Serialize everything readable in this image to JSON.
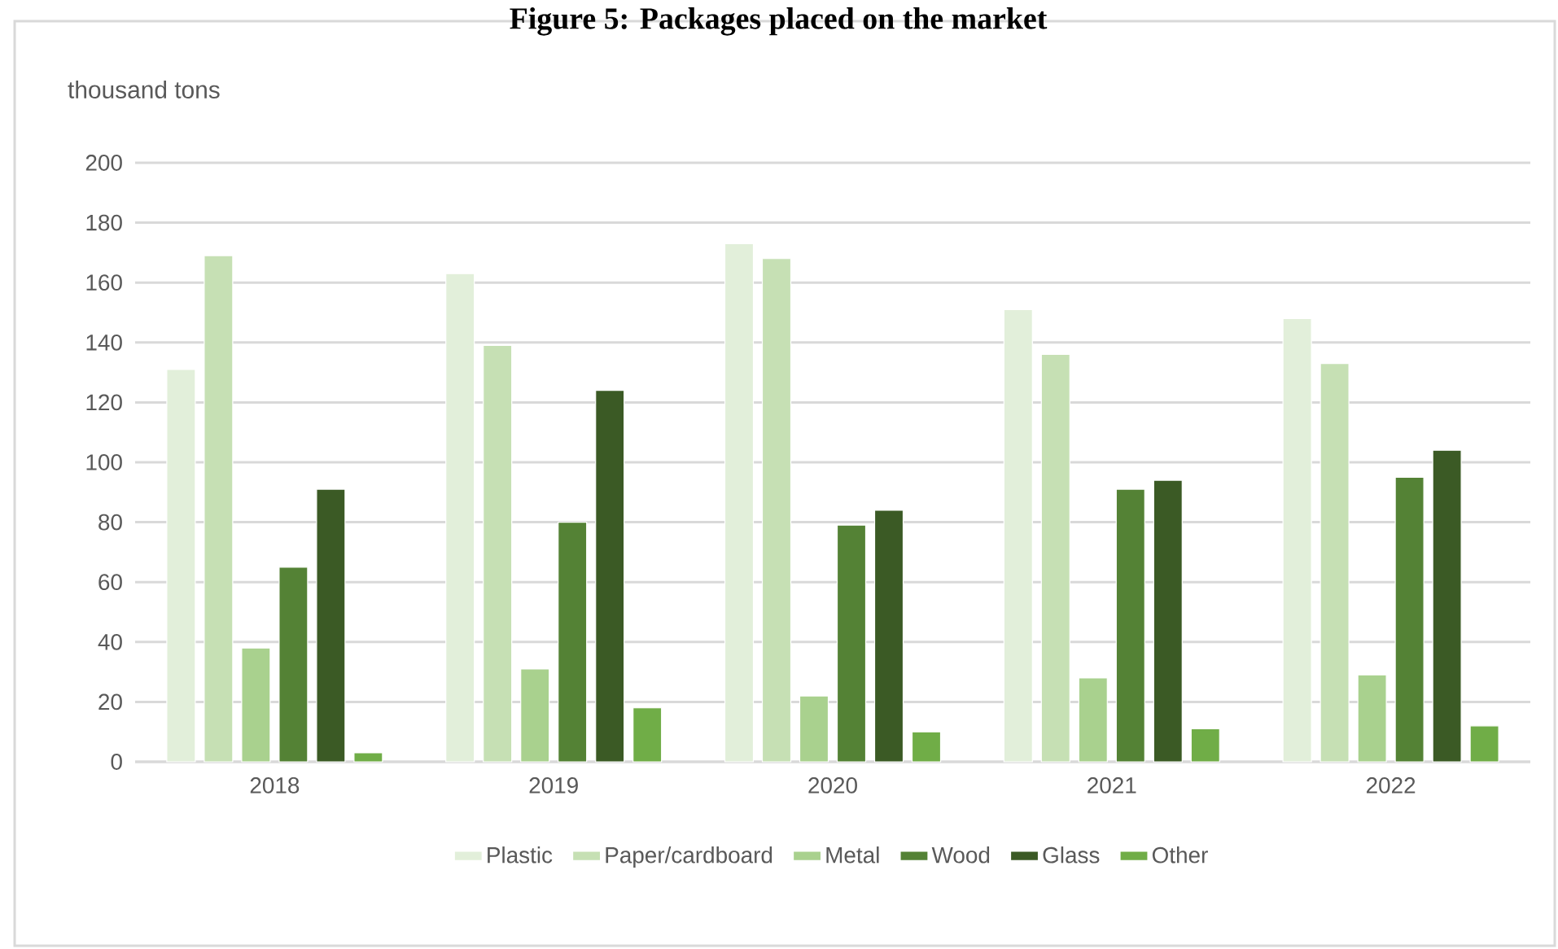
{
  "chart_data": {
    "type": "bar",
    "title": "Figure 5: Packages placed on the market",
    "ylabel": "thousand tons",
    "categories": [
      "2018",
      "2019",
      "2020",
      "2021",
      "2022"
    ],
    "series": [
      {
        "name": "Plastic",
        "color": "#e2efda",
        "values": [
          131,
          163,
          173,
          151,
          148
        ]
      },
      {
        "name": "Paper/cardboard",
        "color": "#c6e0b4",
        "values": [
          169,
          139,
          168,
          136,
          133
        ]
      },
      {
        "name": "Metal",
        "color": "#a9d18e",
        "values": [
          38,
          31,
          22,
          28,
          29
        ]
      },
      {
        "name": "Wood",
        "color": "#548235",
        "values": [
          65,
          80,
          79,
          91,
          95
        ]
      },
      {
        "name": "Glass",
        "color": "#3b5a25",
        "values": [
          91,
          124,
          84,
          94,
          104
        ]
      },
      {
        "name": "Other",
        "color": "#70ad47",
        "values": [
          3,
          18,
          10,
          11,
          12
        ]
      }
    ],
    "ylim": [
      0,
      200
    ],
    "yticks": [
      0,
      20,
      40,
      60,
      80,
      100,
      120,
      140,
      160,
      180,
      200
    ],
    "grid": "y",
    "legend": "bottom"
  }
}
